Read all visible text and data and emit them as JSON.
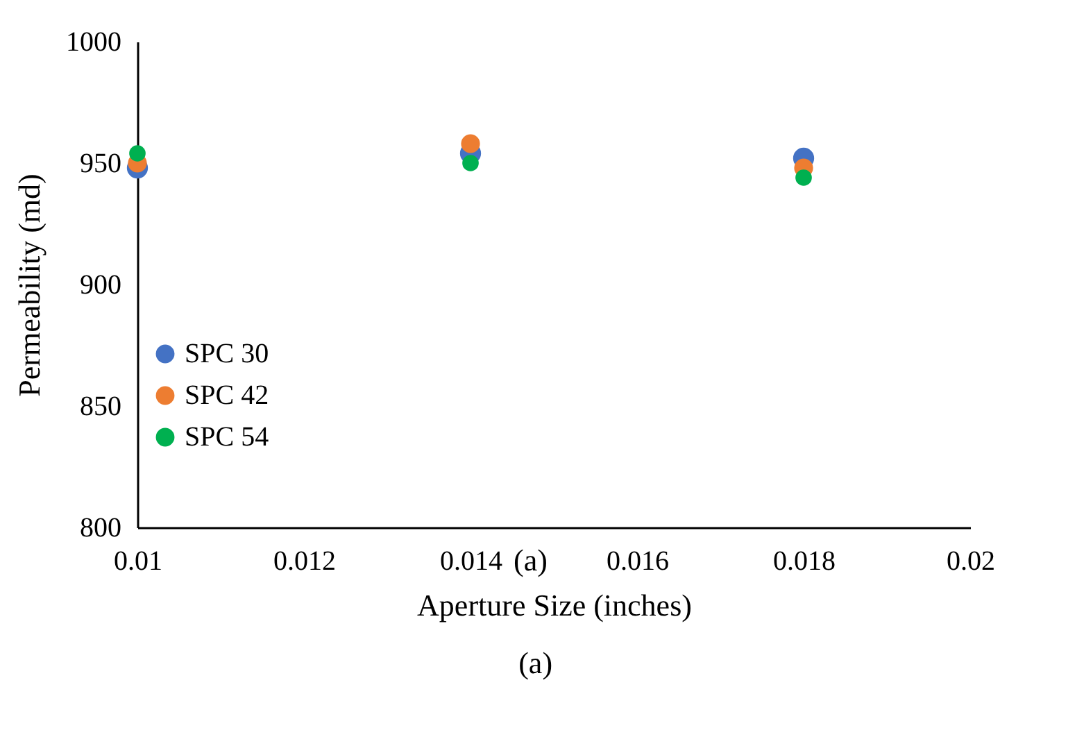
{
  "chart_data": {
    "type": "scatter",
    "xlabel": "Aperture Size (inches)",
    "ylabel": "Permeability (md)",
    "x": [
      0.01,
      0.014,
      0.018
    ],
    "series": [
      {
        "name": "SPC 30",
        "color": "#4472c4",
        "values": [
          948,
          954,
          952
        ]
      },
      {
        "name": "SPC 42",
        "color": "#ed7d31",
        "values": [
          950,
          958,
          948
        ]
      },
      {
        "name": "SPC 54",
        "color": "#00b050",
        "values": [
          954,
          950,
          944
        ]
      }
    ],
    "xlim": [
      0.01,
      0.02
    ],
    "xticks": [
      0.01,
      0.012,
      0.014,
      0.016,
      0.018,
      0.02
    ],
    "ylim": [
      800,
      1000
    ],
    "yticks": [
      800,
      850,
      900,
      950,
      1000
    ],
    "grid": false,
    "legend": "left",
    "marker": "circle",
    "annotations": [
      "(a)",
      "(a)"
    ]
  }
}
